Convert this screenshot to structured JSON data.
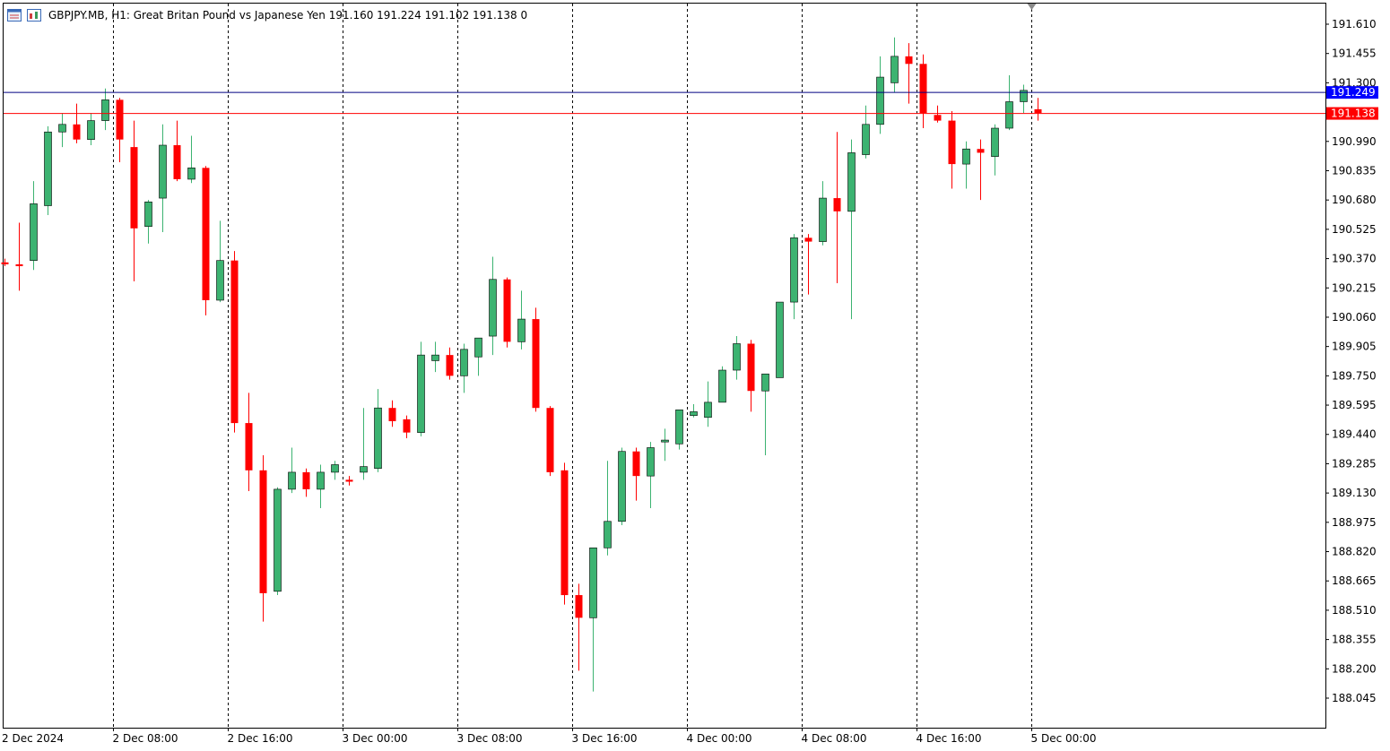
{
  "header": {
    "symbol_line": "GBPJPY.MB, H1:  Great Britan Pound vs Japanese Yen  191.160 191.224 191.102 191.138  0",
    "chart_icon": "chart-window-icon",
    "indicator_icon": "indicator-window-icon"
  },
  "price_axis": {
    "ticks": [
      "191.610",
      "191.455",
      "191.300",
      "191.145",
      "190.990",
      "190.835",
      "190.680",
      "190.525",
      "190.370",
      "190.215",
      "190.060",
      "189.905",
      "189.750",
      "189.595",
      "189.440",
      "189.285",
      "189.130",
      "188.975",
      "188.820",
      "188.665",
      "188.510",
      "188.355",
      "188.200",
      "188.045"
    ],
    "tick_values": [
      191.61,
      191.455,
      191.3,
      191.145,
      190.99,
      190.835,
      190.68,
      190.525,
      190.37,
      190.215,
      190.06,
      189.905,
      189.75,
      189.595,
      189.44,
      189.285,
      189.13,
      188.975,
      188.82,
      188.665,
      188.51,
      188.355,
      188.2,
      188.045
    ],
    "ask_label": "191.249",
    "ask_value": 191.249,
    "bid_label": "191.138",
    "bid_value": 191.138
  },
  "time_axis": {
    "labels": [
      "2 Dec 2024",
      "2 Dec 08:00",
      "2 Dec 16:00",
      "3 Dec 00:00",
      "3 Dec 08:00",
      "3 Dec 16:00",
      "4 Dec 00:00",
      "4 Dec 08:00",
      "4 Dec 16:00",
      "5 Dec 00:00"
    ],
    "label_bar_index": [
      0,
      8,
      16,
      24,
      32,
      40,
      48,
      56,
      64,
      72
    ]
  },
  "colors": {
    "bull": "#3cb371",
    "bear": "#ff0000",
    "ask_line": "#000080",
    "bid_line": "#ff0000",
    "ask_tag": "#0000ff",
    "bid_tag": "#ff0000",
    "separator": "#000000"
  },
  "chart_data": {
    "type": "candlestick",
    "title": "GBPJPY.MB, H1",
    "bars": [
      {
        "o": 190.35,
        "h": 190.37,
        "l": 190.33,
        "c": 190.34
      },
      {
        "o": 190.34,
        "h": 190.56,
        "l": 190.2,
        "c": 190.33
      },
      {
        "o": 190.36,
        "h": 190.78,
        "l": 190.31,
        "c": 190.66
      },
      {
        "o": 190.65,
        "h": 191.07,
        "l": 190.6,
        "c": 191.04
      },
      {
        "o": 191.04,
        "h": 191.14,
        "l": 190.96,
        "c": 191.08
      },
      {
        "o": 191.08,
        "h": 191.19,
        "l": 190.98,
        "c": 191.0
      },
      {
        "o": 191.0,
        "h": 191.14,
        "l": 190.97,
        "c": 191.1
      },
      {
        "o": 191.1,
        "h": 191.27,
        "l": 191.05,
        "c": 191.21
      },
      {
        "o": 191.21,
        "h": 191.22,
        "l": 190.88,
        "c": 191.0
      },
      {
        "o": 190.96,
        "h": 191.1,
        "l": 190.25,
        "c": 190.53
      },
      {
        "o": 190.54,
        "h": 190.68,
        "l": 190.45,
        "c": 190.67
      },
      {
        "o": 190.69,
        "h": 191.08,
        "l": 190.51,
        "c": 190.97
      },
      {
        "o": 190.97,
        "h": 191.1,
        "l": 190.78,
        "c": 190.79
      },
      {
        "o": 190.79,
        "h": 191.02,
        "l": 190.77,
        "c": 190.85
      },
      {
        "o": 190.85,
        "h": 190.86,
        "l": 190.07,
        "c": 190.15
      },
      {
        "o": 190.15,
        "h": 190.57,
        "l": 190.14,
        "c": 190.36
      },
      {
        "o": 190.36,
        "h": 190.41,
        "l": 189.45,
        "c": 189.5
      },
      {
        "o": 189.5,
        "h": 189.66,
        "l": 189.14,
        "c": 189.25
      },
      {
        "o": 189.25,
        "h": 189.33,
        "l": 188.45,
        "c": 188.6
      },
      {
        "o": 188.61,
        "h": 189.16,
        "l": 188.59,
        "c": 189.15
      },
      {
        "o": 189.15,
        "h": 189.37,
        "l": 189.13,
        "c": 189.24
      },
      {
        "o": 189.24,
        "h": 189.26,
        "l": 189.11,
        "c": 189.15
      },
      {
        "o": 189.15,
        "h": 189.28,
        "l": 189.05,
        "c": 189.24
      },
      {
        "o": 189.24,
        "h": 189.3,
        "l": 189.2,
        "c": 189.28
      },
      {
        "o": 189.2,
        "h": 189.22,
        "l": 189.17,
        "c": 189.19
      },
      {
        "o": 189.24,
        "h": 189.58,
        "l": 189.2,
        "c": 189.27
      },
      {
        "o": 189.26,
        "h": 189.68,
        "l": 189.24,
        "c": 189.58
      },
      {
        "o": 189.58,
        "h": 189.62,
        "l": 189.48,
        "c": 189.51
      },
      {
        "o": 189.52,
        "h": 189.54,
        "l": 189.42,
        "c": 189.45
      },
      {
        "o": 189.45,
        "h": 189.93,
        "l": 189.43,
        "c": 189.86
      },
      {
        "o": 189.83,
        "h": 189.93,
        "l": 189.77,
        "c": 189.86
      },
      {
        "o": 189.86,
        "h": 189.9,
        "l": 189.73,
        "c": 189.75
      },
      {
        "o": 189.75,
        "h": 189.92,
        "l": 189.66,
        "c": 189.89
      },
      {
        "o": 189.85,
        "h": 189.95,
        "l": 189.75,
        "c": 189.95
      },
      {
        "o": 189.96,
        "h": 190.38,
        "l": 189.86,
        "c": 190.26
      },
      {
        "o": 190.26,
        "h": 190.27,
        "l": 189.9,
        "c": 189.93
      },
      {
        "o": 189.93,
        "h": 190.2,
        "l": 189.89,
        "c": 190.05
      },
      {
        "o": 190.05,
        "h": 190.11,
        "l": 189.56,
        "c": 189.58
      },
      {
        "o": 189.58,
        "h": 189.59,
        "l": 189.22,
        "c": 189.24
      },
      {
        "o": 189.25,
        "h": 189.29,
        "l": 188.54,
        "c": 188.59
      },
      {
        "o": 188.59,
        "h": 188.65,
        "l": 188.19,
        "c": 188.47
      },
      {
        "o": 188.47,
        "h": 188.84,
        "l": 188.08,
        "c": 188.84
      },
      {
        "o": 188.84,
        "h": 189.3,
        "l": 188.8,
        "c": 188.98
      },
      {
        "o": 188.98,
        "h": 189.37,
        "l": 188.96,
        "c": 189.35
      },
      {
        "o": 189.35,
        "h": 189.37,
        "l": 189.09,
        "c": 189.22
      },
      {
        "o": 189.22,
        "h": 189.4,
        "l": 189.05,
        "c": 189.37
      },
      {
        "o": 189.4,
        "h": 189.47,
        "l": 189.3,
        "c": 189.41
      },
      {
        "o": 189.39,
        "h": 189.57,
        "l": 189.36,
        "c": 189.57
      },
      {
        "o": 189.54,
        "h": 189.6,
        "l": 189.53,
        "c": 189.56
      },
      {
        "o": 189.53,
        "h": 189.72,
        "l": 189.48,
        "c": 189.61
      },
      {
        "o": 189.61,
        "h": 189.8,
        "l": 189.61,
        "c": 189.78
      },
      {
        "o": 189.78,
        "h": 189.96,
        "l": 189.73,
        "c": 189.92
      },
      {
        "o": 189.92,
        "h": 189.94,
        "l": 189.56,
        "c": 189.67
      },
      {
        "o": 189.67,
        "h": 189.73,
        "l": 189.33,
        "c": 189.76
      },
      {
        "o": 189.74,
        "h": 190.14,
        "l": 189.74,
        "c": 190.14
      },
      {
        "o": 190.14,
        "h": 190.5,
        "l": 190.05,
        "c": 190.48
      },
      {
        "o": 190.48,
        "h": 190.5,
        "l": 190.18,
        "c": 190.46
      },
      {
        "o": 190.46,
        "h": 190.78,
        "l": 190.44,
        "c": 190.69
      },
      {
        "o": 190.69,
        "h": 191.04,
        "l": 190.24,
        "c": 190.62
      },
      {
        "o": 190.62,
        "h": 191.0,
        "l": 190.05,
        "c": 190.93
      },
      {
        "o": 190.92,
        "h": 191.18,
        "l": 190.9,
        "c": 191.08
      },
      {
        "o": 191.08,
        "h": 191.44,
        "l": 191.03,
        "c": 191.33
      },
      {
        "o": 191.3,
        "h": 191.54,
        "l": 191.25,
        "c": 191.44
      },
      {
        "o": 191.44,
        "h": 191.51,
        "l": 191.19,
        "c": 191.4
      },
      {
        "o": 191.4,
        "h": 191.45,
        "l": 191.06,
        "c": 191.14
      },
      {
        "o": 191.13,
        "h": 191.18,
        "l": 191.09,
        "c": 191.1
      },
      {
        "o": 191.1,
        "h": 191.15,
        "l": 190.74,
        "c": 190.87
      },
      {
        "o": 190.87,
        "h": 190.99,
        "l": 190.74,
        "c": 190.95
      },
      {
        "o": 190.95,
        "h": 191.0,
        "l": 190.68,
        "c": 190.93
      },
      {
        "o": 190.91,
        "h": 191.08,
        "l": 190.81,
        "c": 191.06
      },
      {
        "o": 191.06,
        "h": 191.34,
        "l": 191.05,
        "c": 191.2
      },
      {
        "o": 191.2,
        "h": 191.29,
        "l": 191.14,
        "c": 191.26
      },
      {
        "o": 191.16,
        "h": 191.22,
        "l": 191.1,
        "c": 191.14
      }
    ]
  }
}
